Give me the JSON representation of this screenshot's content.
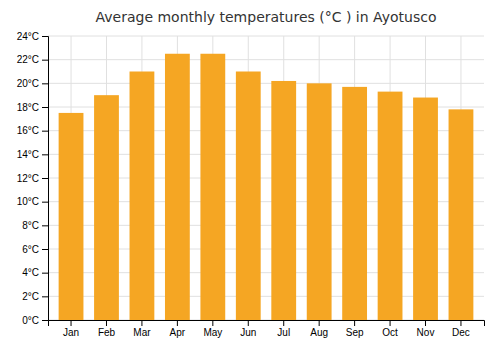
{
  "chart_data": {
    "type": "bar",
    "title": "Average monthly temperatures (°C ) in Ayotusco",
    "categories": [
      "Jan",
      "Feb",
      "Mar",
      "Apr",
      "May",
      "Jun",
      "Jul",
      "Aug",
      "Sep",
      "Oct",
      "Nov",
      "Dec"
    ],
    "values": [
      17.5,
      19.0,
      21.0,
      22.5,
      22.5,
      21.0,
      20.2,
      20.0,
      19.7,
      19.3,
      18.8,
      17.8
    ],
    "color": "#F5A623",
    "ylim": [
      0,
      24
    ],
    "yticks": [
      {
        "value": 0,
        "label": "0°C"
      },
      {
        "value": 2,
        "label": "2°C"
      },
      {
        "value": 4,
        "label": "4°C"
      },
      {
        "value": 6,
        "label": "6°C"
      },
      {
        "value": 8,
        "label": "8°C"
      },
      {
        "value": 10,
        "label": "10°C"
      },
      {
        "value": 12,
        "label": "12°C"
      },
      {
        "value": 14,
        "label": "14°C"
      },
      {
        "value": 16,
        "label": "16°C"
      },
      {
        "value": 18,
        "label": "18°C"
      },
      {
        "value": 20,
        "label": "20°C"
      },
      {
        "value": 22,
        "label": "22°C"
      },
      {
        "value": 24,
        "label": "24°C"
      }
    ],
    "grid": true
  }
}
